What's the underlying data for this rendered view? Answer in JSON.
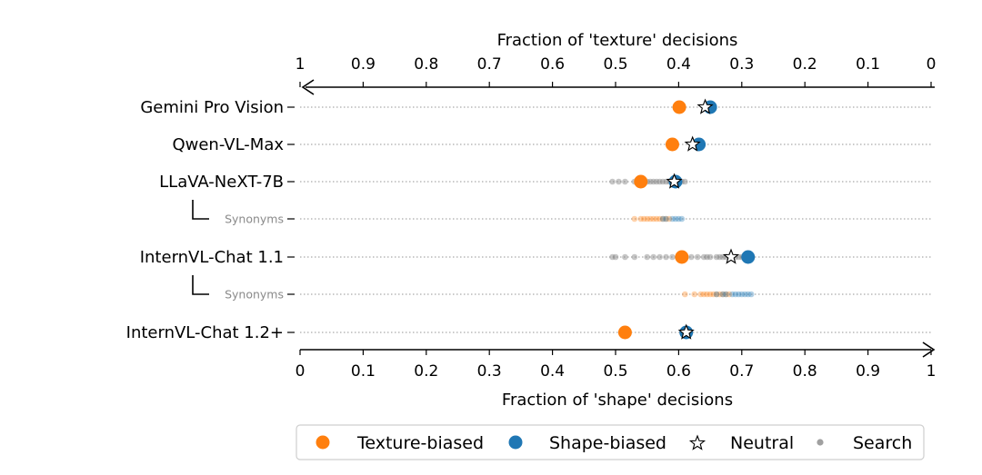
{
  "chart_data": {
    "type": "scatter",
    "top_axis": {
      "label": "Fraction of 'texture' decisions",
      "ticks": [
        "1",
        "0.9",
        "0.8",
        "0.7",
        "0.6",
        "0.5",
        "0.4",
        "0.3",
        "0.2",
        "0.1",
        "0"
      ],
      "range": [
        1,
        0
      ]
    },
    "bottom_axis": {
      "label": "Fraction of 'shape' decisions",
      "ticks": [
        "0",
        "0.1",
        "0.2",
        "0.3",
        "0.4",
        "0.5",
        "0.6",
        "0.7",
        "0.8",
        "0.9",
        "1"
      ],
      "range": [
        0,
        1
      ]
    },
    "grid": "dotted horizontal row lines",
    "legend": {
      "placement": "bottom",
      "items": [
        {
          "label": "Texture-biased",
          "marker": "circle",
          "color": "#ff7f0e"
        },
        {
          "label": "Shape-biased",
          "marker": "circle",
          "color": "#1f77b4"
        },
        {
          "label": "Neutral",
          "marker": "star",
          "color": "#ffffff"
        },
        {
          "label": "Search",
          "marker": "small-circle",
          "color": "#a0a0a0"
        }
      ]
    },
    "rows": [
      {
        "label": "Gemini Pro Vision",
        "synonym": false,
        "texture_biased": 0.601,
        "shape_biased": 0.65,
        "neutral": 0.642,
        "search": []
      },
      {
        "label": "Qwen-VL-Max",
        "synonym": false,
        "texture_biased": 0.59,
        "shape_biased": 0.632,
        "neutral": 0.622,
        "search": []
      },
      {
        "label": "LLaVA-NeXT-7B",
        "synonym": false,
        "texture_biased": 0.54,
        "shape_biased": 0.595,
        "neutral": 0.593,
        "search": [
          0.495,
          0.505,
          0.515,
          0.53,
          0.545,
          0.55,
          0.555,
          0.56,
          0.565,
          0.57,
          0.575,
          0.58,
          0.585,
          0.59,
          0.6,
          0.605,
          0.61
        ]
      },
      {
        "label": "Synonyms",
        "synonym": true,
        "search_texture": [
          0.53,
          0.54,
          0.545,
          0.55,
          0.555,
          0.56,
          0.565,
          0.57,
          0.575,
          0.58,
          0.585
        ],
        "search_shape": [
          0.575,
          0.58,
          0.59,
          0.595,
          0.6,
          0.605
        ]
      },
      {
        "label": "InternVL-Chat 1.1",
        "synonym": false,
        "texture_biased": 0.605,
        "shape_biased": 0.71,
        "neutral": 0.683,
        "search": [
          0.495,
          0.5,
          0.515,
          0.53,
          0.55,
          0.56,
          0.57,
          0.58,
          0.59,
          0.61,
          0.62,
          0.63,
          0.64,
          0.645,
          0.65,
          0.66,
          0.665,
          0.67,
          0.675,
          0.68,
          0.69,
          0.695,
          0.7
        ]
      },
      {
        "label": "Synonyms",
        "synonym": true,
        "search_texture": [
          0.61,
          0.625,
          0.635,
          0.64,
          0.645,
          0.65,
          0.655,
          0.66,
          0.665,
          0.67,
          0.675,
          0.68
        ],
        "search_shape": [
          0.66,
          0.67,
          0.675,
          0.685,
          0.69,
          0.695,
          0.7,
          0.705,
          0.71,
          0.715
        ]
      },
      {
        "label": "InternVL-Chat 1.2+",
        "synonym": false,
        "texture_biased": 0.515,
        "shape_biased": 0.612,
        "neutral": 0.612,
        "search": []
      }
    ]
  }
}
